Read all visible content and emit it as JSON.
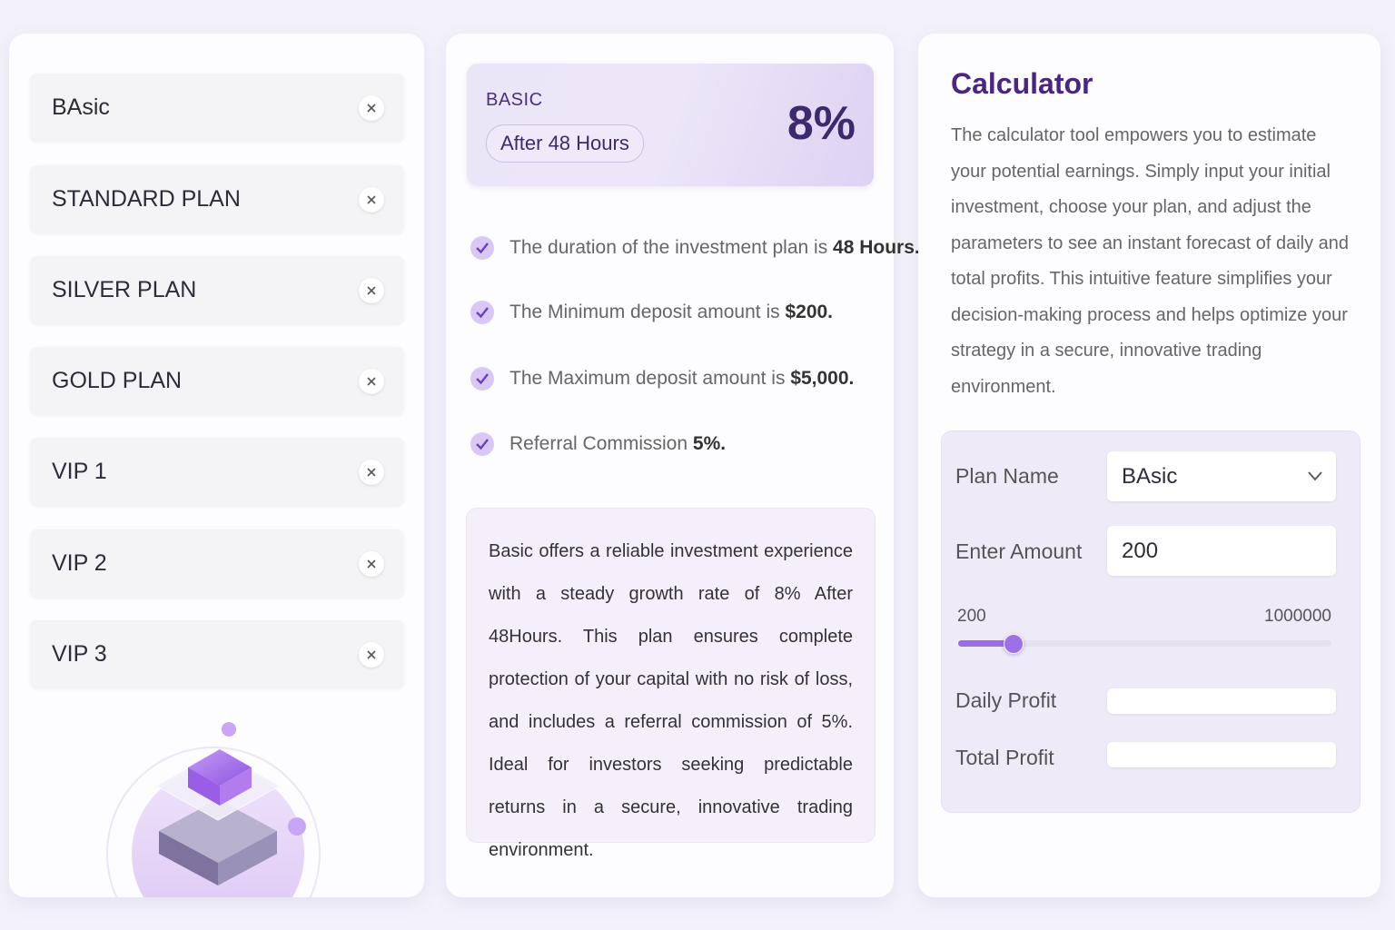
{
  "plans": [
    "BAsic",
    "STANDARD PLAN",
    "SILVER PLAN",
    "GOLD PLAN",
    "VIP 1",
    "VIP 2",
    "VIP 3"
  ],
  "plan_card": {
    "label": "BASIC",
    "duration": "After 48 Hours",
    "rate": "8%"
  },
  "features": [
    {
      "text": "The duration of the investment plan is",
      "highlight": "48 Hours."
    },
    {
      "text": "The Minimum deposit amount is",
      "highlight": "$200."
    },
    {
      "text": "The Maximum deposit amount is",
      "highlight": "$5,000."
    },
    {
      "text": "Referral Commission",
      "highlight": "5%."
    }
  ],
  "plan_description": "Basic offers a reliable investment experience with a steady growth rate of 8% After 48Hours. This plan ensures complete protection of your capital with no risk of loss, and includes a referral commission of 5%. Ideal for investors seeking predictable returns in a secure, innovative trading environment.",
  "calculator": {
    "title": "Calculator",
    "description": "The calculator tool empowers you to estimate your potential earnings. Simply input your initial investment, choose your plan, and adjust the parameters to see an instant forecast of daily and total profits. This intuitive feature simplifies your decision-making process and helps optimize your strategy in a secure, innovative trading environment.",
    "plan_name_label": "Plan Name",
    "plan_name_value": "BAsic",
    "amount_label": "Enter Amount",
    "amount_value": "200",
    "slider_min": "200",
    "slider_max": "1000000",
    "daily_profit_label": "Daily Profit",
    "total_profit_label": "Total Profit"
  }
}
